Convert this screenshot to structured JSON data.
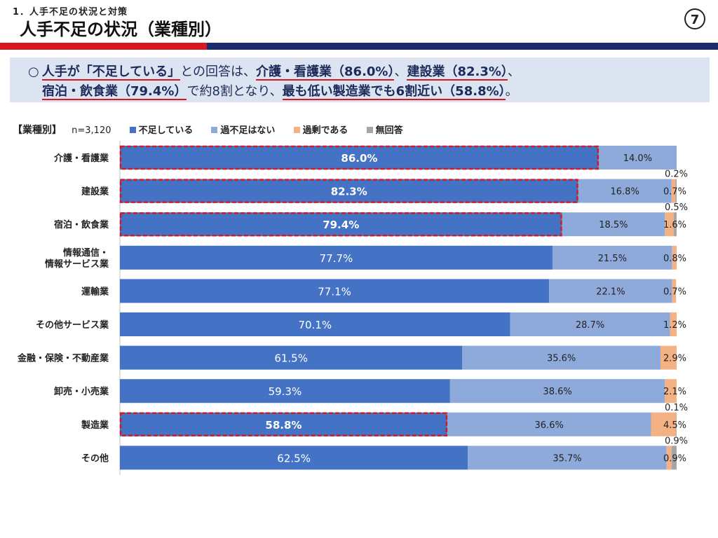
{
  "header": {
    "section": "1．人手不足の状況と対策",
    "title": "人手不足の状況（業種別）",
    "page_number": "7"
  },
  "summary": {
    "bullet": "○",
    "line1_parts": [
      "人手が「不足している」",
      "との回答は、",
      "介護・看護業（86.0%）",
      "、",
      "建設業（82.3%）",
      "、"
    ],
    "line2_parts": [
      "宿泊・飲食業（79.4%）",
      "で約8割となり、",
      "最も低い製造業でも6割近い（58.8%）",
      "。"
    ]
  },
  "legend": {
    "title": "【業種別】",
    "n": "n=3,120",
    "items": [
      "不足している",
      "過不足はない",
      "過剰である",
      "無回答"
    ]
  },
  "colors": {
    "shortage": "#4472c4",
    "balanced": "#8eaadb",
    "surplus": "#f4b183",
    "no_answer": "#a6a6a6",
    "highlight": "#d6191f"
  },
  "chart_data": {
    "type": "bar",
    "orientation": "horizontal",
    "stacked": true,
    "percent": true,
    "xlim": [
      0,
      100
    ],
    "categories": [
      "介護・看護業",
      "建設業",
      "宿泊・飲食業",
      "情報通信・\n情報サービス業",
      "運輸業",
      "その他サービス業",
      "金融・保険・不動産業",
      "卸売・小売業",
      "製造業",
      "その他"
    ],
    "series": [
      {
        "name": "不足している",
        "values": [
          86.0,
          82.3,
          79.4,
          77.7,
          77.1,
          70.1,
          61.5,
          59.3,
          58.8,
          62.5
        ]
      },
      {
        "name": "過不足はない",
        "values": [
          14.0,
          16.8,
          18.5,
          21.5,
          22.1,
          28.7,
          35.6,
          38.6,
          36.6,
          35.7
        ]
      },
      {
        "name": "過剰である",
        "values": [
          0.0,
          0.7,
          1.6,
          0.8,
          0.7,
          1.2,
          2.9,
          2.1,
          4.5,
          0.9
        ]
      },
      {
        "name": "無回答",
        "values": [
          0.0,
          0.2,
          0.5,
          0.0,
          0.0,
          0.0,
          0.0,
          0.0,
          0.1,
          0.9
        ]
      }
    ],
    "labels": {
      "shortage": [
        "86.0%",
        "82.3%",
        "79.4%",
        "77.7%",
        "77.1%",
        "70.1%",
        "61.5%",
        "59.3%",
        "58.8%",
        "62.5%"
      ],
      "balanced": [
        "14.0%",
        "16.8%",
        "18.5%",
        "21.5%",
        "22.1%",
        "28.7%",
        "35.6%",
        "38.6%",
        "36.6%",
        "35.7%"
      ],
      "surplus": [
        "",
        "0.7%",
        "1.6%",
        "0.8%",
        "0.7%",
        "1.2%",
        "2.9%",
        "2.1%",
        "4.5%",
        "0.9%"
      ],
      "no_answer_above": [
        "",
        "0.2%",
        "0.5%",
        "",
        "",
        "",
        "",
        "",
        "0.1%",
        "0.9%"
      ]
    },
    "highlighted": [
      0,
      1,
      2,
      8
    ]
  }
}
